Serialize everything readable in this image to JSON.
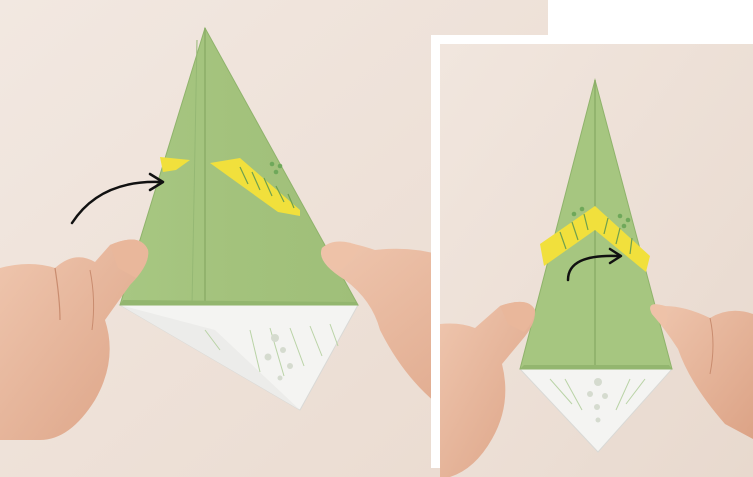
{
  "colors": {
    "background_paper": "#efe3d9",
    "origami_green": "#a9c884",
    "origami_green_dark": "#8fb36b",
    "origami_white": "#f3f3f1",
    "yellow_accent": "#f2e13a",
    "green_dots": "#6fa85a",
    "skin": "#e6b79d",
    "arrow": "#111111",
    "frame": "#ffffff"
  },
  "icons": {
    "left_arrow": "curved-arrow-right-icon",
    "right_arrow": "curved-arrow-right-icon"
  }
}
